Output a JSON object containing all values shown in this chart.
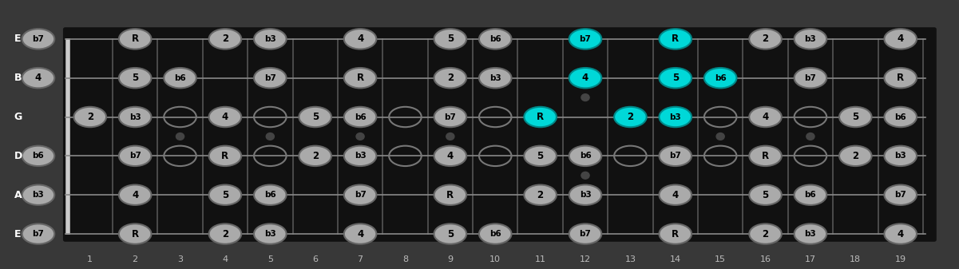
{
  "bg_outer": "#3a3a3a",
  "bg_inner": "#1a1a1a",
  "nut_color": "#cccccc",
  "fret_color": "#555555",
  "string_color": "#888888",
  "label_color": "#bbbbbb",
  "note_fill_normal": "#aaaaaa",
  "note_fill_highlight": "#00d8d8",
  "note_edge_normal": "#666666",
  "note_edge_highlight": "#008888",
  "note_text_color": "#000000",
  "string_label_color": "#ffffff",
  "strings": [
    "E",
    "B",
    "G",
    "D",
    "A",
    "E"
  ],
  "n_frets": 19,
  "notes": [
    {
      "string": 0,
      "fret": 0,
      "label": "b7",
      "highlight": false
    },
    {
      "string": 0,
      "fret": 2,
      "label": "R",
      "highlight": false
    },
    {
      "string": 0,
      "fret": 4,
      "label": "2",
      "highlight": false
    },
    {
      "string": 0,
      "fret": 5,
      "label": "b3",
      "highlight": false
    },
    {
      "string": 0,
      "fret": 7,
      "label": "4",
      "highlight": false
    },
    {
      "string": 0,
      "fret": 9,
      "label": "5",
      "highlight": false
    },
    {
      "string": 0,
      "fret": 10,
      "label": "b6",
      "highlight": false
    },
    {
      "string": 0,
      "fret": 12,
      "label": "b7",
      "highlight": true
    },
    {
      "string": 0,
      "fret": 14,
      "label": "R",
      "highlight": true
    },
    {
      "string": 0,
      "fret": 16,
      "label": "2",
      "highlight": false
    },
    {
      "string": 0,
      "fret": 17,
      "label": "b3",
      "highlight": false
    },
    {
      "string": 0,
      "fret": 19,
      "label": "4",
      "highlight": false
    },
    {
      "string": 1,
      "fret": 0,
      "label": "4",
      "highlight": false
    },
    {
      "string": 1,
      "fret": 2,
      "label": "5",
      "highlight": false
    },
    {
      "string": 1,
      "fret": 3,
      "label": "b6",
      "highlight": false
    },
    {
      "string": 1,
      "fret": 5,
      "label": "b7",
      "highlight": false
    },
    {
      "string": 1,
      "fret": 7,
      "label": "R",
      "highlight": false
    },
    {
      "string": 1,
      "fret": 9,
      "label": "2",
      "highlight": false
    },
    {
      "string": 1,
      "fret": 10,
      "label": "b3",
      "highlight": false
    },
    {
      "string": 1,
      "fret": 12,
      "label": "4",
      "highlight": true
    },
    {
      "string": 1,
      "fret": 14,
      "label": "5",
      "highlight": true
    },
    {
      "string": 1,
      "fret": 15,
      "label": "b6",
      "highlight": true
    },
    {
      "string": 1,
      "fret": 17,
      "label": "b7",
      "highlight": false
    },
    {
      "string": 1,
      "fret": 19,
      "label": "R",
      "highlight": false
    },
    {
      "string": 2,
      "fret": 1,
      "label": "2",
      "highlight": false
    },
    {
      "string": 2,
      "fret": 2,
      "label": "b3",
      "highlight": false
    },
    {
      "string": 2,
      "fret": 4,
      "label": "4",
      "highlight": false
    },
    {
      "string": 2,
      "fret": 6,
      "label": "5",
      "highlight": false
    },
    {
      "string": 2,
      "fret": 7,
      "label": "b6",
      "highlight": false
    },
    {
      "string": 2,
      "fret": 9,
      "label": "b7",
      "highlight": false
    },
    {
      "string": 2,
      "fret": 11,
      "label": "R",
      "highlight": true
    },
    {
      "string": 2,
      "fret": 13,
      "label": "2",
      "highlight": true
    },
    {
      "string": 2,
      "fret": 14,
      "label": "b3",
      "highlight": true
    },
    {
      "string": 2,
      "fret": 16,
      "label": "4",
      "highlight": false
    },
    {
      "string": 2,
      "fret": 18,
      "label": "5",
      "highlight": false
    },
    {
      "string": 2,
      "fret": 19,
      "label": "b6",
      "highlight": false
    },
    {
      "string": 3,
      "fret": 0,
      "label": "b6",
      "highlight": false
    },
    {
      "string": 3,
      "fret": 2,
      "label": "b7",
      "highlight": false
    },
    {
      "string": 3,
      "fret": 4,
      "label": "R",
      "highlight": false
    },
    {
      "string": 3,
      "fret": 6,
      "label": "2",
      "highlight": false
    },
    {
      "string": 3,
      "fret": 7,
      "label": "b3",
      "highlight": false
    },
    {
      "string": 3,
      "fret": 9,
      "label": "4",
      "highlight": false
    },
    {
      "string": 3,
      "fret": 11,
      "label": "5",
      "highlight": false
    },
    {
      "string": 3,
      "fret": 12,
      "label": "b6",
      "highlight": false
    },
    {
      "string": 3,
      "fret": 14,
      "label": "b7",
      "highlight": false
    },
    {
      "string": 3,
      "fret": 16,
      "label": "R",
      "highlight": false
    },
    {
      "string": 3,
      "fret": 18,
      "label": "2",
      "highlight": false
    },
    {
      "string": 3,
      "fret": 19,
      "label": "b3",
      "highlight": false
    },
    {
      "string": 4,
      "fret": 0,
      "label": "b3",
      "highlight": false
    },
    {
      "string": 4,
      "fret": 2,
      "label": "4",
      "highlight": false
    },
    {
      "string": 4,
      "fret": 4,
      "label": "5",
      "highlight": false
    },
    {
      "string": 4,
      "fret": 5,
      "label": "b6",
      "highlight": false
    },
    {
      "string": 4,
      "fret": 7,
      "label": "b7",
      "highlight": false
    },
    {
      "string": 4,
      "fret": 9,
      "label": "R",
      "highlight": false
    },
    {
      "string": 4,
      "fret": 11,
      "label": "2",
      "highlight": false
    },
    {
      "string": 4,
      "fret": 12,
      "label": "b3",
      "highlight": false
    },
    {
      "string": 4,
      "fret": 14,
      "label": "4",
      "highlight": false
    },
    {
      "string": 4,
      "fret": 16,
      "label": "5",
      "highlight": false
    },
    {
      "string": 4,
      "fret": 17,
      "label": "b6",
      "highlight": false
    },
    {
      "string": 4,
      "fret": 19,
      "label": "b7",
      "highlight": false
    },
    {
      "string": 5,
      "fret": 0,
      "label": "b7",
      "highlight": false
    },
    {
      "string": 5,
      "fret": 2,
      "label": "R",
      "highlight": false
    },
    {
      "string": 5,
      "fret": 4,
      "label": "2",
      "highlight": false
    },
    {
      "string": 5,
      "fret": 5,
      "label": "b3",
      "highlight": false
    },
    {
      "string": 5,
      "fret": 7,
      "label": "4",
      "highlight": false
    },
    {
      "string": 5,
      "fret": 9,
      "label": "5",
      "highlight": false
    },
    {
      "string": 5,
      "fret": 10,
      "label": "b6",
      "highlight": false
    },
    {
      "string": 5,
      "fret": 12,
      "label": "b7",
      "highlight": false
    },
    {
      "string": 5,
      "fret": 14,
      "label": "R",
      "highlight": false
    },
    {
      "string": 5,
      "fret": 16,
      "label": "2",
      "highlight": false
    },
    {
      "string": 5,
      "fret": 17,
      "label": "b3",
      "highlight": false
    },
    {
      "string": 5,
      "fret": 19,
      "label": "4",
      "highlight": false
    }
  ],
  "open_dots": [
    {
      "string": 2,
      "fret": 3
    },
    {
      "string": 2,
      "fret": 5
    },
    {
      "string": 2,
      "fret": 8
    },
    {
      "string": 2,
      "fret": 10
    },
    {
      "string": 2,
      "fret": 15
    },
    {
      "string": 2,
      "fret": 17
    },
    {
      "string": 3,
      "fret": 3
    },
    {
      "string": 3,
      "fret": 5
    },
    {
      "string": 3,
      "fret": 8
    },
    {
      "string": 3,
      "fret": 10
    },
    {
      "string": 3,
      "fret": 13
    },
    {
      "string": 3,
      "fret": 15
    },
    {
      "string": 3,
      "fret": 17
    }
  ]
}
